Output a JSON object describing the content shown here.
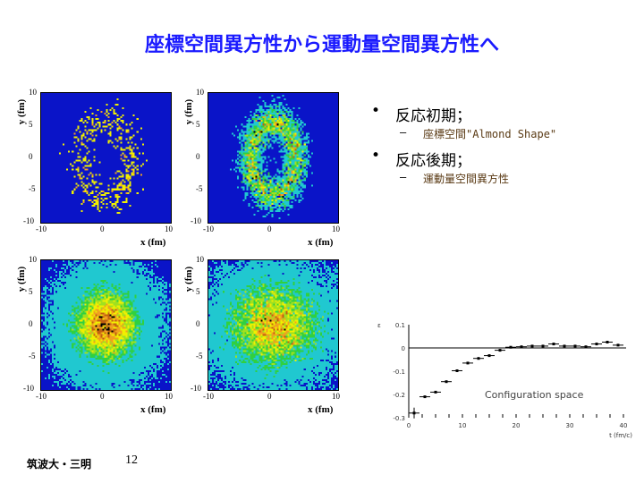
{
  "title": "座標空間異方性から運動量空間異方性へ",
  "bullets": [
    {
      "label": "反応初期；",
      "sub": "座標空間\"Almond Shape\""
    },
    {
      "label": "反応後期；",
      "sub": "運動量空間異方性"
    }
  ],
  "footer": {
    "author": "筑波大・三明",
    "page": "12"
  },
  "colors": {
    "title": "#1a1aff",
    "heatmap_bg": "#0a14c8",
    "sub_text": "#5a3a14"
  },
  "heatmaps": {
    "xlabel": "x (fm)",
    "ylabel": "y (fm)",
    "xticks": [
      "-10",
      "0",
      "10"
    ],
    "yticks": [
      "10",
      "5",
      "0",
      "-5",
      "-10"
    ],
    "panels": [
      "early-sparse",
      "early-ring",
      "late-dense",
      "late-spread"
    ]
  },
  "chart_data": {
    "type": "scatter",
    "annotation": "Configuration space",
    "xlabel": "t (fm/c)",
    "ylabel": "ε",
    "xlim": [
      0,
      40
    ],
    "ylim": [
      -0.3,
      0.1
    ],
    "xticks": [
      "0",
      "10",
      "20",
      "30",
      "40"
    ],
    "yticks": [
      "0.1",
      "0",
      "-0.1",
      "-0.2",
      "-0.3"
    ],
    "x": [
      1,
      3,
      5,
      7,
      9,
      11,
      13,
      15,
      17,
      19,
      21,
      23,
      25,
      27,
      29,
      31,
      33,
      35,
      37,
      39
    ],
    "y": [
      -0.28,
      -0.21,
      -0.19,
      -0.145,
      -0.098,
      -0.065,
      -0.045,
      -0.033,
      -0.01,
      0.003,
      0.005,
      0.008,
      0.008,
      0.017,
      0.008,
      0.008,
      0.005,
      0.017,
      0.025,
      0.012
    ]
  }
}
